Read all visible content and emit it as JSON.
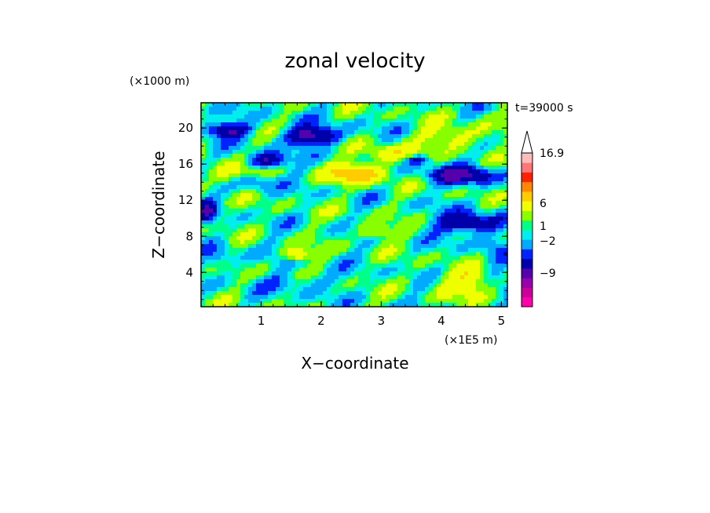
{
  "chart_data": {
    "type": "heatmap",
    "title": "zonal velocity",
    "time_label": "t=39000 s",
    "xlabel": "X−coordinate",
    "ylabel": "Z−coordinate",
    "x_unit": "(×1E5 m)",
    "z_unit": "(×1000 m)",
    "xlim": [
      0,
      5.1
    ],
    "ylim": [
      0.2,
      22.8
    ],
    "x_ticks": [
      1,
      2,
      3,
      4,
      5
    ],
    "y_ticks": [
      4,
      8,
      12,
      16,
      20
    ],
    "colorbar": {
      "labels": [
        "16.9",
        "6",
        "1",
        "−2",
        "−9"
      ],
      "levels": [
        -16,
        -12,
        -9,
        -6,
        -4,
        -2,
        -1,
        0,
        0.5,
        1,
        2,
        4,
        6,
        9,
        12,
        16.9
      ],
      "colors": [
        "#ff00aa",
        "#cc0099",
        "#9900aa",
        "#5500aa",
        "#0000aa",
        "#0022ff",
        "#00aaff",
        "#00eeee",
        "#00ff88",
        "#88ff00",
        "#eeff00",
        "#ffcc00",
        "#ff8800",
        "#ff2200",
        "#ff7777",
        "#ffbbbb"
      ],
      "extend_top": true
    },
    "features": [
      {
        "x": 0.45,
        "z": 19.8,
        "sx": 0.35,
        "sz": 0.8,
        "value": -5
      },
      {
        "x": 1.85,
        "z": 19.2,
        "sx": 0.45,
        "sz": 1.0,
        "value": -5.5
      },
      {
        "x": 1.1,
        "z": 16.4,
        "sx": 0.3,
        "sz": 0.8,
        "value": -5
      },
      {
        "x": 0.1,
        "z": 10.8,
        "sx": 0.15,
        "sz": 1.3,
        "value": -4
      },
      {
        "x": 4.35,
        "z": 14.8,
        "sx": 0.55,
        "sz": 1.0,
        "value": -5
      },
      {
        "x": 4.45,
        "z": 9.5,
        "sx": 0.5,
        "sz": 1.1,
        "value": -5
      },
      {
        "x": 3.6,
        "z": 16.5,
        "sx": 0.2,
        "sz": 0.5,
        "value": -3
      },
      {
        "x": 0.9,
        "z": 14.0,
        "sx": 0.3,
        "sz": 1.0,
        "value": -2
      },
      {
        "x": 2.6,
        "z": 15.0,
        "sx": 0.45,
        "sz": 1.1,
        "value": 5
      },
      {
        "x": 3.1,
        "z": 17.2,
        "sx": 0.4,
        "sz": 0.9,
        "value": 3
      },
      {
        "x": 4.2,
        "z": 19.0,
        "sx": 0.5,
        "sz": 1.3,
        "value": 2.5
      },
      {
        "x": 0.5,
        "z": 15.0,
        "sx": 0.4,
        "sz": 1.2,
        "value": 2.5
      },
      {
        "x": 1.6,
        "z": 6.0,
        "sx": 0.2,
        "sz": 0.6,
        "value": 4
      },
      {
        "x": 4.4,
        "z": 3.0,
        "sx": 0.45,
        "sz": 1.6,
        "value": 3
      },
      {
        "x": 2.9,
        "z": 8.5,
        "sx": 0.3,
        "sz": 0.8,
        "value": 2.5
      },
      {
        "x": 1.6,
        "z": 3.0,
        "sx": 0.6,
        "sz": 1.0,
        "value": -1.5
      },
      {
        "x": 0.3,
        "z": 5.5,
        "sx": 0.3,
        "sz": 1.5,
        "value": -1.5
      },
      {
        "x": 4.9,
        "z": 6.0,
        "sx": 0.25,
        "sz": 2.5,
        "value": -1.5
      }
    ]
  }
}
